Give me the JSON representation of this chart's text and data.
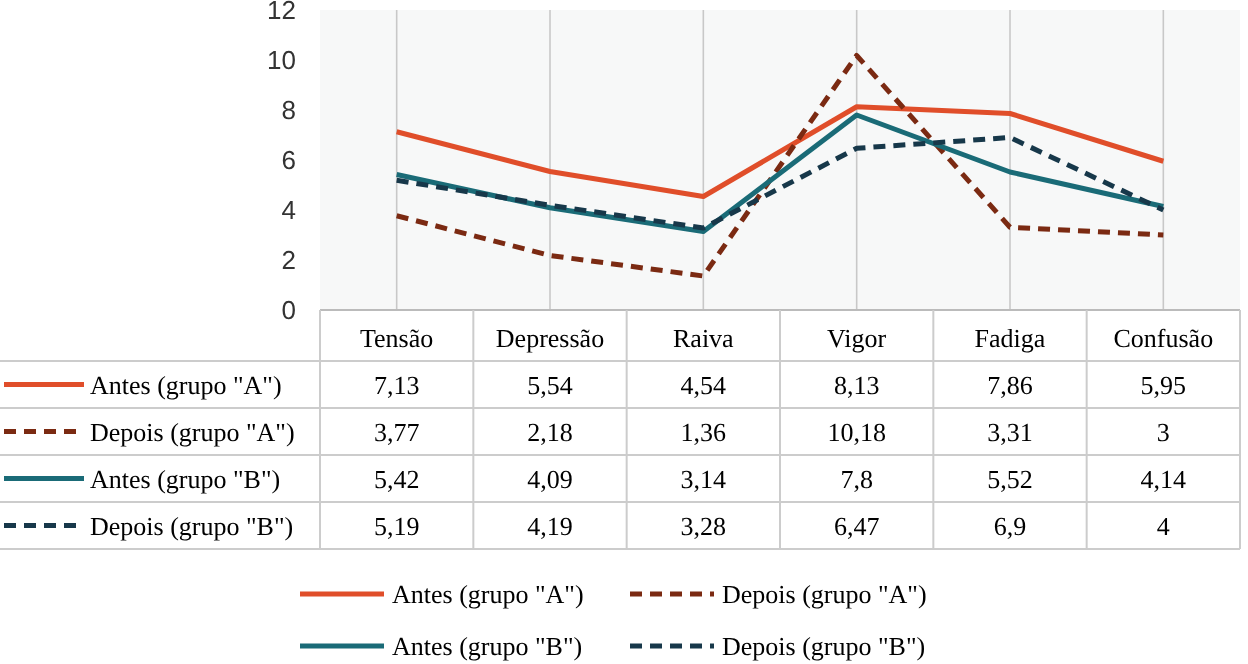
{
  "chart_data": {
    "type": "line",
    "categories": [
      "Tensão",
      "Depressão",
      "Raiva",
      "Vigor",
      "Fadiga",
      "Confusão"
    ],
    "ylim": [
      0,
      12
    ],
    "yticks": [
      0,
      2,
      4,
      6,
      8,
      10,
      12
    ],
    "grid": "x",
    "legend": "bottom",
    "series": [
      {
        "name": "Antes (grupo \"A\")",
        "color": "#e04e2a",
        "line_style": "solid",
        "values": [
          7.13,
          5.54,
          4.54,
          8.13,
          7.86,
          5.95
        ],
        "value_labels": [
          "7,13",
          "5,54",
          "4,54",
          "8,13",
          "7,86",
          "5,95"
        ]
      },
      {
        "name": "Depois (grupo \"A\")",
        "color": "#7b2a12",
        "line_style": "dashed",
        "values": [
          3.77,
          2.18,
          1.36,
          10.18,
          3.31,
          3
        ],
        "value_labels": [
          "3,77",
          "2,18",
          "1,36",
          "10,18",
          "3,31",
          "3"
        ]
      },
      {
        "name": "Antes (grupo \"B\")",
        "color": "#1a6b77",
        "line_style": "solid",
        "values": [
          5.42,
          4.09,
          3.14,
          7.8,
          5.52,
          4.14
        ],
        "value_labels": [
          "5,42",
          "4,09",
          "3,14",
          "7,8",
          "5,52",
          "4,14"
        ]
      },
      {
        "name": "Depois (grupo \"B\")",
        "color": "#17384a",
        "line_style": "dashed",
        "values": [
          5.19,
          4.19,
          3.28,
          6.47,
          6.9,
          4
        ],
        "value_labels": [
          "5,19",
          "4,19",
          "3,28",
          "6,47",
          "6,9",
          "4"
        ]
      }
    ]
  }
}
